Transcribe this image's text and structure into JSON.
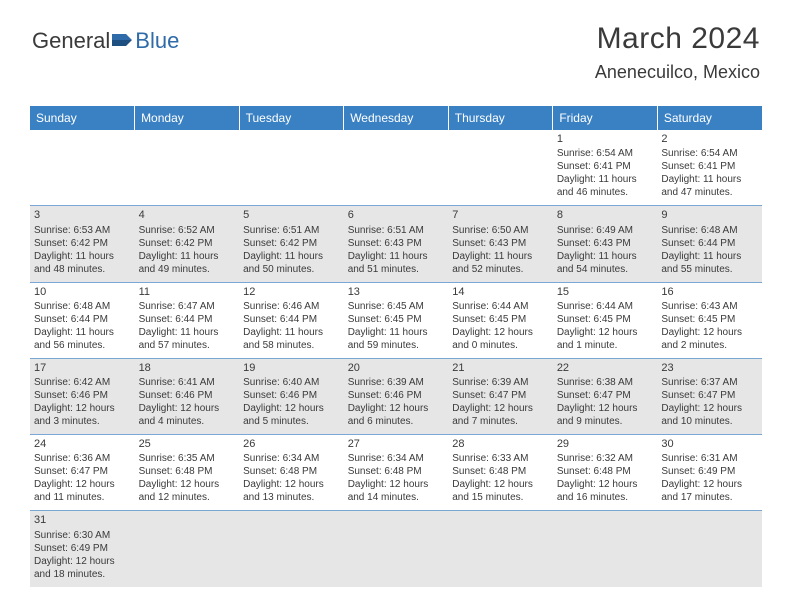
{
  "logo": {
    "text_general": "General",
    "text_blue": "Blue"
  },
  "header": {
    "title": "March 2024",
    "location": "Anenecuilco, Mexico"
  },
  "colors": {
    "header_bg": "#3a81c4",
    "header_text": "#ffffff",
    "row_even_bg": "#e6e6e6",
    "row_odd_bg": "#ffffff",
    "cell_border": "#7aa8d4",
    "text": "#3a3a3a",
    "logo_blue": "#2f6ba8"
  },
  "typography": {
    "title_fontsize": 30,
    "location_fontsize": 18,
    "weekday_fontsize": 12,
    "daynum_fontsize": 11,
    "cell_fontsize": 10
  },
  "weekdays": [
    "Sunday",
    "Monday",
    "Tuesday",
    "Wednesday",
    "Thursday",
    "Friday",
    "Saturday"
  ],
  "cells": [
    [
      null,
      null,
      null,
      null,
      null,
      {
        "day": "1",
        "sunrise": "Sunrise: 6:54 AM",
        "sunset": "Sunset: 6:41 PM",
        "day1": "Daylight: 11 hours",
        "day2": "and 46 minutes."
      },
      {
        "day": "2",
        "sunrise": "Sunrise: 6:54 AM",
        "sunset": "Sunset: 6:41 PM",
        "day1": "Daylight: 11 hours",
        "day2": "and 47 minutes."
      }
    ],
    [
      {
        "day": "3",
        "sunrise": "Sunrise: 6:53 AM",
        "sunset": "Sunset: 6:42 PM",
        "day1": "Daylight: 11 hours",
        "day2": "and 48 minutes."
      },
      {
        "day": "4",
        "sunrise": "Sunrise: 6:52 AM",
        "sunset": "Sunset: 6:42 PM",
        "day1": "Daylight: 11 hours",
        "day2": "and 49 minutes."
      },
      {
        "day": "5",
        "sunrise": "Sunrise: 6:51 AM",
        "sunset": "Sunset: 6:42 PM",
        "day1": "Daylight: 11 hours",
        "day2": "and 50 minutes."
      },
      {
        "day": "6",
        "sunrise": "Sunrise: 6:51 AM",
        "sunset": "Sunset: 6:43 PM",
        "day1": "Daylight: 11 hours",
        "day2": "and 51 minutes."
      },
      {
        "day": "7",
        "sunrise": "Sunrise: 6:50 AM",
        "sunset": "Sunset: 6:43 PM",
        "day1": "Daylight: 11 hours",
        "day2": "and 52 minutes."
      },
      {
        "day": "8",
        "sunrise": "Sunrise: 6:49 AM",
        "sunset": "Sunset: 6:43 PM",
        "day1": "Daylight: 11 hours",
        "day2": "and 54 minutes."
      },
      {
        "day": "9",
        "sunrise": "Sunrise: 6:48 AM",
        "sunset": "Sunset: 6:44 PM",
        "day1": "Daylight: 11 hours",
        "day2": "and 55 minutes."
      }
    ],
    [
      {
        "day": "10",
        "sunrise": "Sunrise: 6:48 AM",
        "sunset": "Sunset: 6:44 PM",
        "day1": "Daylight: 11 hours",
        "day2": "and 56 minutes."
      },
      {
        "day": "11",
        "sunrise": "Sunrise: 6:47 AM",
        "sunset": "Sunset: 6:44 PM",
        "day1": "Daylight: 11 hours",
        "day2": "and 57 minutes."
      },
      {
        "day": "12",
        "sunrise": "Sunrise: 6:46 AM",
        "sunset": "Sunset: 6:44 PM",
        "day1": "Daylight: 11 hours",
        "day2": "and 58 minutes."
      },
      {
        "day": "13",
        "sunrise": "Sunrise: 6:45 AM",
        "sunset": "Sunset: 6:45 PM",
        "day1": "Daylight: 11 hours",
        "day2": "and 59 minutes."
      },
      {
        "day": "14",
        "sunrise": "Sunrise: 6:44 AM",
        "sunset": "Sunset: 6:45 PM",
        "day1": "Daylight: 12 hours",
        "day2": "and 0 minutes."
      },
      {
        "day": "15",
        "sunrise": "Sunrise: 6:44 AM",
        "sunset": "Sunset: 6:45 PM",
        "day1": "Daylight: 12 hours",
        "day2": "and 1 minute."
      },
      {
        "day": "16",
        "sunrise": "Sunrise: 6:43 AM",
        "sunset": "Sunset: 6:45 PM",
        "day1": "Daylight: 12 hours",
        "day2": "and 2 minutes."
      }
    ],
    [
      {
        "day": "17",
        "sunrise": "Sunrise: 6:42 AM",
        "sunset": "Sunset: 6:46 PM",
        "day1": "Daylight: 12 hours",
        "day2": "and 3 minutes."
      },
      {
        "day": "18",
        "sunrise": "Sunrise: 6:41 AM",
        "sunset": "Sunset: 6:46 PM",
        "day1": "Daylight: 12 hours",
        "day2": "and 4 minutes."
      },
      {
        "day": "19",
        "sunrise": "Sunrise: 6:40 AM",
        "sunset": "Sunset: 6:46 PM",
        "day1": "Daylight: 12 hours",
        "day2": "and 5 minutes."
      },
      {
        "day": "20",
        "sunrise": "Sunrise: 6:39 AM",
        "sunset": "Sunset: 6:46 PM",
        "day1": "Daylight: 12 hours",
        "day2": "and 6 minutes."
      },
      {
        "day": "21",
        "sunrise": "Sunrise: 6:39 AM",
        "sunset": "Sunset: 6:47 PM",
        "day1": "Daylight: 12 hours",
        "day2": "and 7 minutes."
      },
      {
        "day": "22",
        "sunrise": "Sunrise: 6:38 AM",
        "sunset": "Sunset: 6:47 PM",
        "day1": "Daylight: 12 hours",
        "day2": "and 9 minutes."
      },
      {
        "day": "23",
        "sunrise": "Sunrise: 6:37 AM",
        "sunset": "Sunset: 6:47 PM",
        "day1": "Daylight: 12 hours",
        "day2": "and 10 minutes."
      }
    ],
    [
      {
        "day": "24",
        "sunrise": "Sunrise: 6:36 AM",
        "sunset": "Sunset: 6:47 PM",
        "day1": "Daylight: 12 hours",
        "day2": "and 11 minutes."
      },
      {
        "day": "25",
        "sunrise": "Sunrise: 6:35 AM",
        "sunset": "Sunset: 6:48 PM",
        "day1": "Daylight: 12 hours",
        "day2": "and 12 minutes."
      },
      {
        "day": "26",
        "sunrise": "Sunrise: 6:34 AM",
        "sunset": "Sunset: 6:48 PM",
        "day1": "Daylight: 12 hours",
        "day2": "and 13 minutes."
      },
      {
        "day": "27",
        "sunrise": "Sunrise: 6:34 AM",
        "sunset": "Sunset: 6:48 PM",
        "day1": "Daylight: 12 hours",
        "day2": "and 14 minutes."
      },
      {
        "day": "28",
        "sunrise": "Sunrise: 6:33 AM",
        "sunset": "Sunset: 6:48 PM",
        "day1": "Daylight: 12 hours",
        "day2": "and 15 minutes."
      },
      {
        "day": "29",
        "sunrise": "Sunrise: 6:32 AM",
        "sunset": "Sunset: 6:48 PM",
        "day1": "Daylight: 12 hours",
        "day2": "and 16 minutes."
      },
      {
        "day": "30",
        "sunrise": "Sunrise: 6:31 AM",
        "sunset": "Sunset: 6:49 PM",
        "day1": "Daylight: 12 hours",
        "day2": "and 17 minutes."
      }
    ],
    [
      {
        "day": "31",
        "sunrise": "Sunrise: 6:30 AM",
        "sunset": "Sunset: 6:49 PM",
        "day1": "Daylight: 12 hours",
        "day2": "and 18 minutes."
      },
      null,
      null,
      null,
      null,
      null,
      null
    ]
  ]
}
